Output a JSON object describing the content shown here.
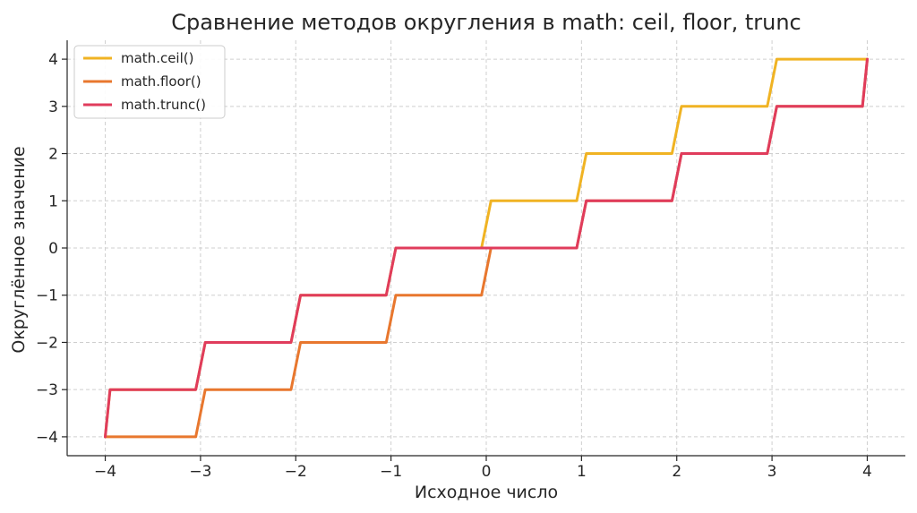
{
  "chart_data": {
    "type": "line",
    "title": "Сравнение методов округления в math: ceil, floor, trunc",
    "xlabel": "Исходное число",
    "ylabel": "Округлённое значение",
    "xlim": [
      -4.4,
      4.4
    ],
    "ylim": [
      -4.4,
      4.4
    ],
    "xticks": [
      -4,
      -3,
      -2,
      -1,
      0,
      1,
      2,
      3,
      4
    ],
    "yticks": [
      -4,
      -3,
      -2,
      -1,
      0,
      1,
      2,
      3,
      4
    ],
    "xtick_labels": [
      "−4",
      "−3",
      "−2",
      "−1",
      "0",
      "1",
      "2",
      "3",
      "4"
    ],
    "ytick_labels": [
      "−4",
      "−3",
      "−2",
      "−1",
      "0",
      "1",
      "2",
      "3",
      "4"
    ],
    "grid": true,
    "legend_position": "upper-left",
    "series": [
      {
        "name": "math.ceil()",
        "color": "#f0b323",
        "x": [
          -4.0,
          -3.95,
          -3.05,
          -2.95,
          -2.05,
          -1.95,
          -1.05,
          -0.95,
          -0.05,
          0.05,
          0.95,
          1.05,
          1.95,
          2.05,
          2.95,
          3.05,
          4.0
        ],
        "y": [
          -4,
          -3,
          -3,
          -2,
          -2,
          -1,
          -1,
          0,
          0,
          1,
          1,
          2,
          2,
          3,
          3,
          4,
          4
        ]
      },
      {
        "name": "math.floor()",
        "color": "#e8772e",
        "x": [
          -4.0,
          -3.05,
          -2.95,
          -2.05,
          -1.95,
          -1.05,
          -0.95,
          -0.05,
          0.05,
          0.95,
          1.05,
          1.95,
          2.05,
          2.95,
          3.05,
          3.95,
          4.0
        ],
        "y": [
          -4,
          -4,
          -3,
          -3,
          -2,
          -2,
          -1,
          -1,
          0,
          0,
          1,
          1,
          2,
          2,
          3,
          3,
          4
        ]
      },
      {
        "name": "math.trunc()",
        "color": "#e03c5c",
        "x": [
          -4.0,
          -3.95,
          -3.05,
          -2.95,
          -2.05,
          -1.95,
          -1.05,
          -0.95,
          0.95,
          1.05,
          1.95,
          2.05,
          2.95,
          3.05,
          3.95,
          4.0
        ],
        "y": [
          -4,
          -3,
          -3,
          -2,
          -2,
          -1,
          -1,
          0,
          0,
          1,
          1,
          2,
          2,
          3,
          3,
          4
        ]
      }
    ]
  }
}
